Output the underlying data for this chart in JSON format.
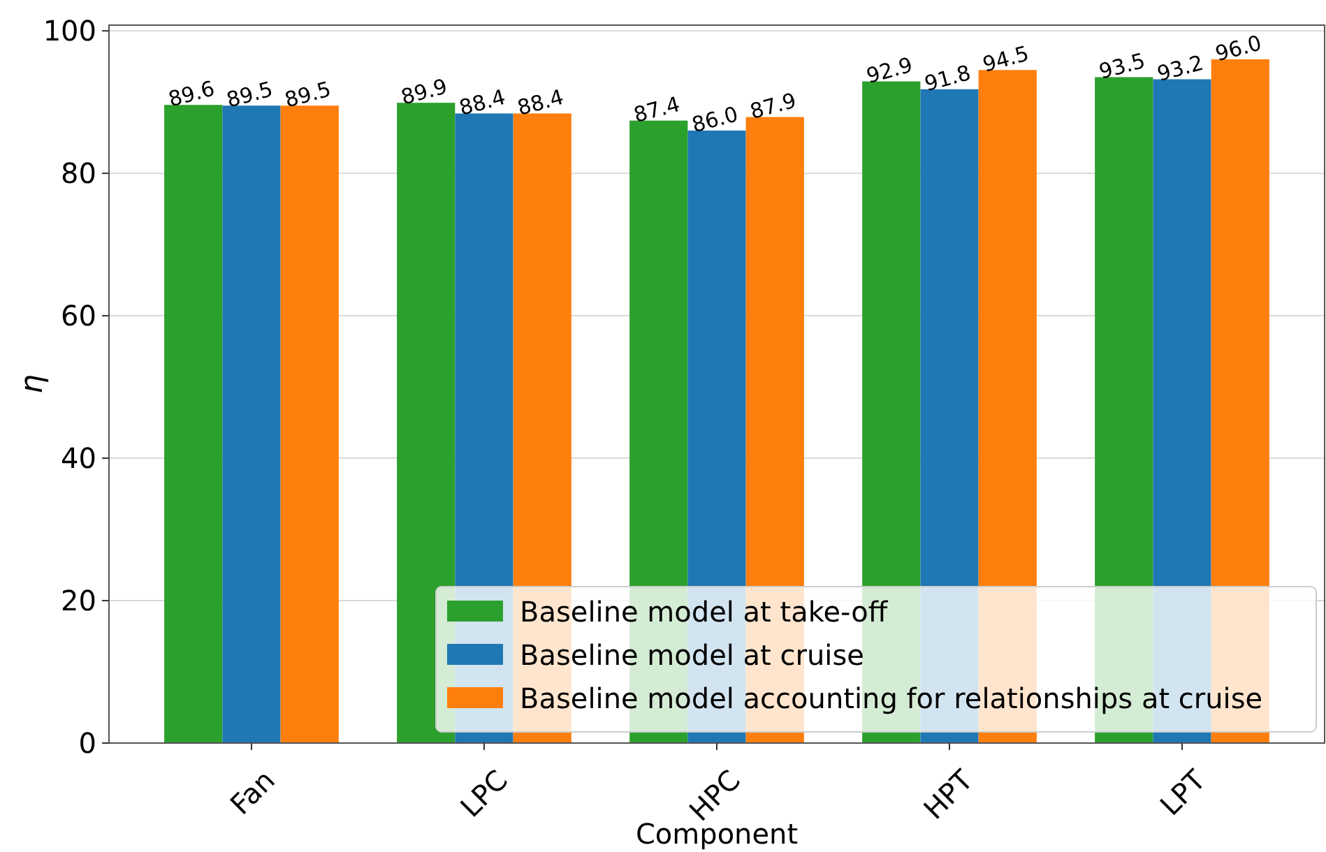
{
  "chart_data": {
    "type": "bar",
    "xlabel": "Component",
    "ylabel": "η",
    "categories": [
      "Fan",
      "LPC",
      "HPC",
      "HPT",
      "LPT"
    ],
    "series": [
      {
        "name": "Baseline model at take-off",
        "color": "#2ca02c",
        "values": [
          89.6,
          89.9,
          87.4,
          92.9,
          93.5
        ],
        "value_labels": [
          "89.6",
          "89.9",
          "87.4",
          "92.9",
          "93.5"
        ]
      },
      {
        "name": "Baseline model at cruise",
        "color": "#1f77b4",
        "values": [
          89.5,
          88.4,
          86.0,
          91.8,
          93.2
        ],
        "value_labels": [
          "89.5",
          "88.4",
          "86.0",
          "91.8",
          "93.2"
        ]
      },
      {
        "name": "Baseline model accounting for relationships at cruise",
        "color": "#ff7f0e",
        "values": [
          89.5,
          88.4,
          87.9,
          94.5,
          96.0
        ],
        "value_labels": [
          "89.5",
          "88.4",
          "87.9",
          "94.5",
          "96.0"
        ]
      }
    ],
    "ylim": [
      0,
      100.8
    ],
    "yticks": [
      0,
      20,
      40,
      60,
      80,
      100
    ],
    "grid": "y",
    "legend": "bottom right"
  }
}
